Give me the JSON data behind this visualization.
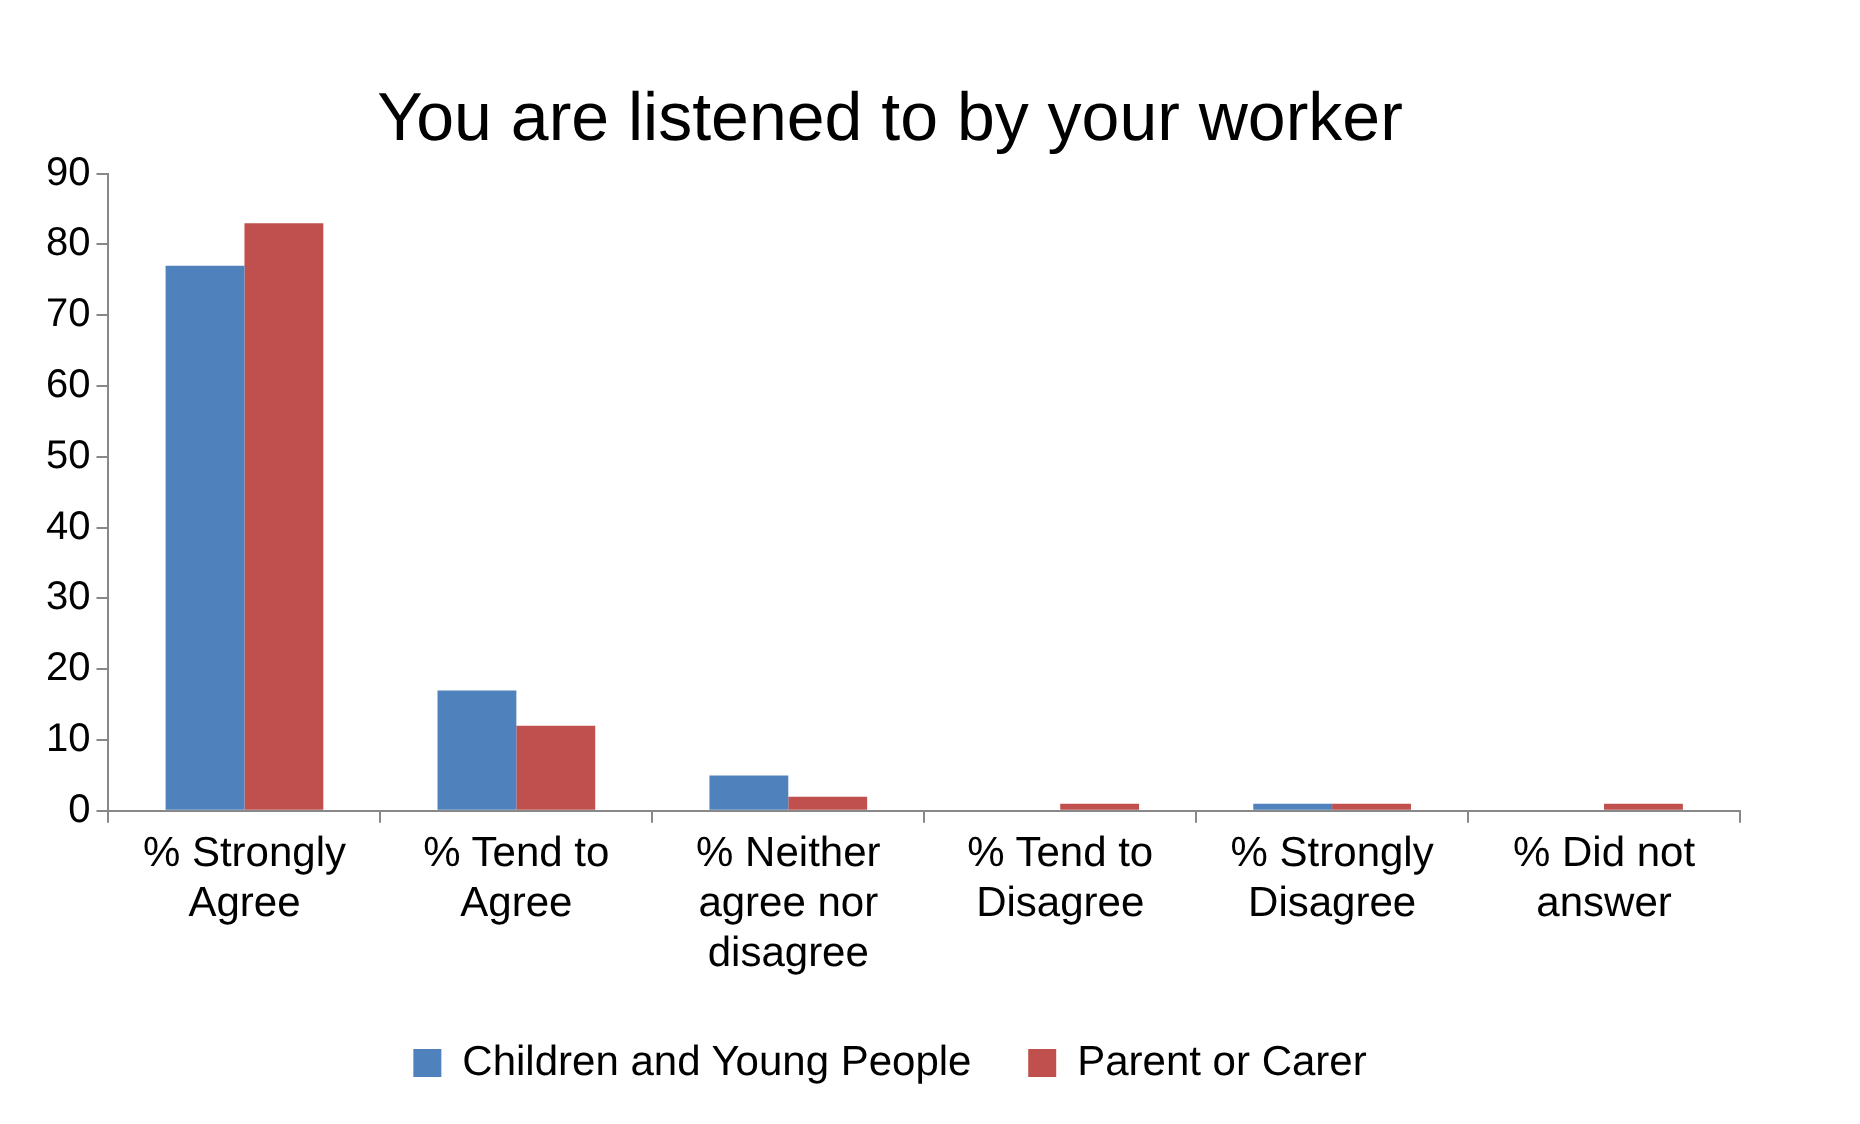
{
  "chart_data": {
    "type": "bar",
    "title": "You are listened to by your worker",
    "categories": [
      "% Strongly Agree",
      "% Tend to Agree",
      "% Neither agree nor disagree",
      "% Tend to Disagree",
      "% Strongly Disagree",
      "% Did not answer"
    ],
    "series": [
      {
        "name": "Children and Young People",
        "color": "#4f81bd",
        "values": [
          77,
          17,
          5,
          0,
          1,
          0
        ]
      },
      {
        "name": "Parent or Carer",
        "color": "#c0504d",
        "values": [
          83,
          12,
          2,
          1,
          1,
          1
        ]
      }
    ],
    "ylim": [
      0,
      90
    ],
    "yticks": [
      0,
      10,
      20,
      30,
      40,
      50,
      60,
      70,
      80,
      90
    ],
    "grid": false,
    "legend": "bottom"
  }
}
